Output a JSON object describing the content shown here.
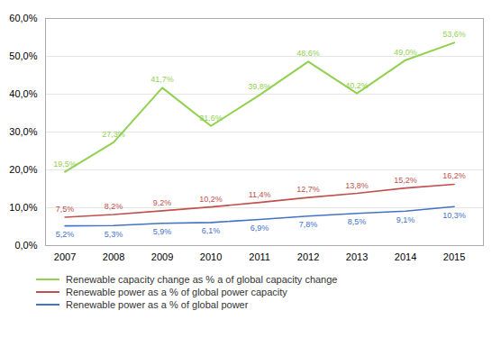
{
  "chart_data": {
    "type": "line",
    "x": [
      2007,
      2008,
      2009,
      2010,
      2011,
      2012,
      2013,
      2014,
      2015
    ],
    "xlim": [
      2006.6,
      2015.6
    ],
    "xticks": [
      2007,
      2008,
      2009,
      2010,
      2011,
      2012,
      2013,
      2014,
      2015
    ],
    "ylim": [
      0.0,
      60.0
    ],
    "yticks": [
      {
        "value": 0.0,
        "label": "0,0%"
      },
      {
        "value": 10.0,
        "label": "10,0%"
      },
      {
        "value": 20.0,
        "label": "20,0%"
      },
      {
        "value": 30.0,
        "label": "30,0%"
      },
      {
        "value": 40.0,
        "label": "40,0%"
      },
      {
        "value": 50.0,
        "label": "50,0%"
      },
      {
        "value": 60.0,
        "label": "60,0%"
      }
    ],
    "grid": true,
    "legend": "bottom",
    "data_labels": true,
    "series": [
      {
        "name": "Renewable capacity change as % a of global capacity change",
        "color": "#92d050",
        "values": [
          19.5,
          27.3,
          41.7,
          31.6,
          39.8,
          48.6,
          40.2,
          49.0,
          53.6
        ],
        "value_labels": [
          "19,5%",
          "27,3%",
          "41,7%",
          "31,6%",
          "39,8%",
          "48,6%",
          "40,2%",
          "49,0%",
          "53,6%"
        ]
      },
      {
        "name": "Renewable power as a % of global power capacity",
        "color": "#c0504d",
        "values": [
          7.5,
          8.2,
          9.2,
          10.2,
          11.4,
          12.7,
          13.8,
          15.2,
          16.2
        ],
        "value_labels": [
          "7,5%",
          "8,2%",
          "9,2%",
          "10,2%",
          "11,4%",
          "12,7%",
          "13,8%",
          "15,2%",
          "16,2%"
        ]
      },
      {
        "name": "Renewable power as a % of global power",
        "color": "#4472c4",
        "values": [
          5.2,
          5.3,
          5.9,
          6.1,
          6.9,
          7.8,
          8.5,
          9.1,
          10.3
        ],
        "value_labels": [
          "5,2%",
          "5,3%",
          "5,9%",
          "6,1%",
          "6,9%",
          "7,8%",
          "8,5%",
          "9,1%",
          "10,3%"
        ]
      }
    ]
  }
}
